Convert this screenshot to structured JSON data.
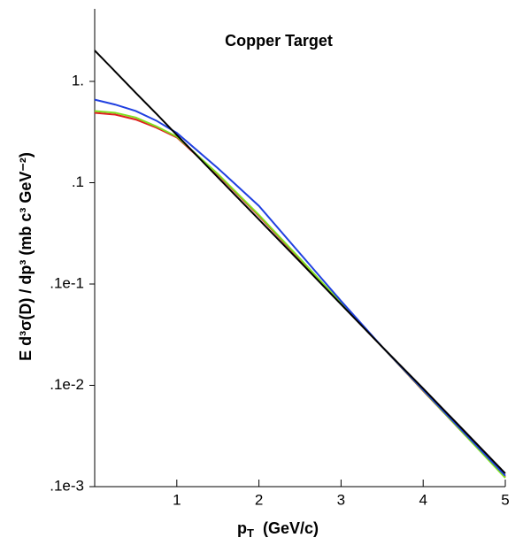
{
  "chart_data": {
    "type": "line",
    "title": "Copper Target",
    "x_label": {
      "base": "p",
      "sub": "T",
      "rest": "(GeV/c)"
    },
    "y_label": "E d³σ(D) / dp³  (mb c³ GeV⁻²)",
    "x": [
      0,
      0.25,
      0.5,
      0.75,
      1,
      1.5,
      2,
      2.5,
      3,
      3.5,
      4,
      4.5,
      5
    ],
    "series": [
      {
        "color": "#e02020",
        "values": [
          0.49,
          0.47,
          0.42,
          0.35,
          0.28,
          0.12,
          0.047,
          0.0175,
          0.0064,
          0.0024,
          0.00088,
          0.00033,
          0.000125
        ]
      },
      {
        "color": "#80e020",
        "values": [
          0.51,
          0.49,
          0.44,
          0.36,
          0.285,
          0.122,
          0.048,
          0.0178,
          0.0065,
          0.0024,
          0.00089,
          0.00033,
          0.000122
        ]
      },
      {
        "color": "#2040e0",
        "values": [
          0.66,
          0.59,
          0.51,
          0.41,
          0.31,
          0.139,
          0.059,
          0.02,
          0.0068,
          0.0024,
          0.0009,
          0.00034,
          0.000128
        ]
      },
      {
        "color": "#000000",
        "values": [
          2.02,
          1.25,
          0.77,
          0.48,
          0.296,
          0.113,
          0.0433,
          0.0166,
          0.0063,
          0.0024,
          0.00093,
          0.000355,
          0.000135
        ]
      }
    ],
    "xlim": [
      0,
      5
    ],
    "xticks": [
      1,
      2,
      3,
      4,
      5
    ],
    "ylim": [
      0.0001,
      5.2
    ],
    "log_y": true,
    "yticks": [
      {
        "value": 1,
        "label": "1."
      },
      {
        "value": 0.1,
        "label": ".1"
      },
      {
        "value": 0.01,
        "label": ".1e-1"
      },
      {
        "value": 0.001,
        "label": ".1e-2"
      },
      {
        "value": 0.0001,
        "label": ".1e-3"
      }
    ]
  }
}
